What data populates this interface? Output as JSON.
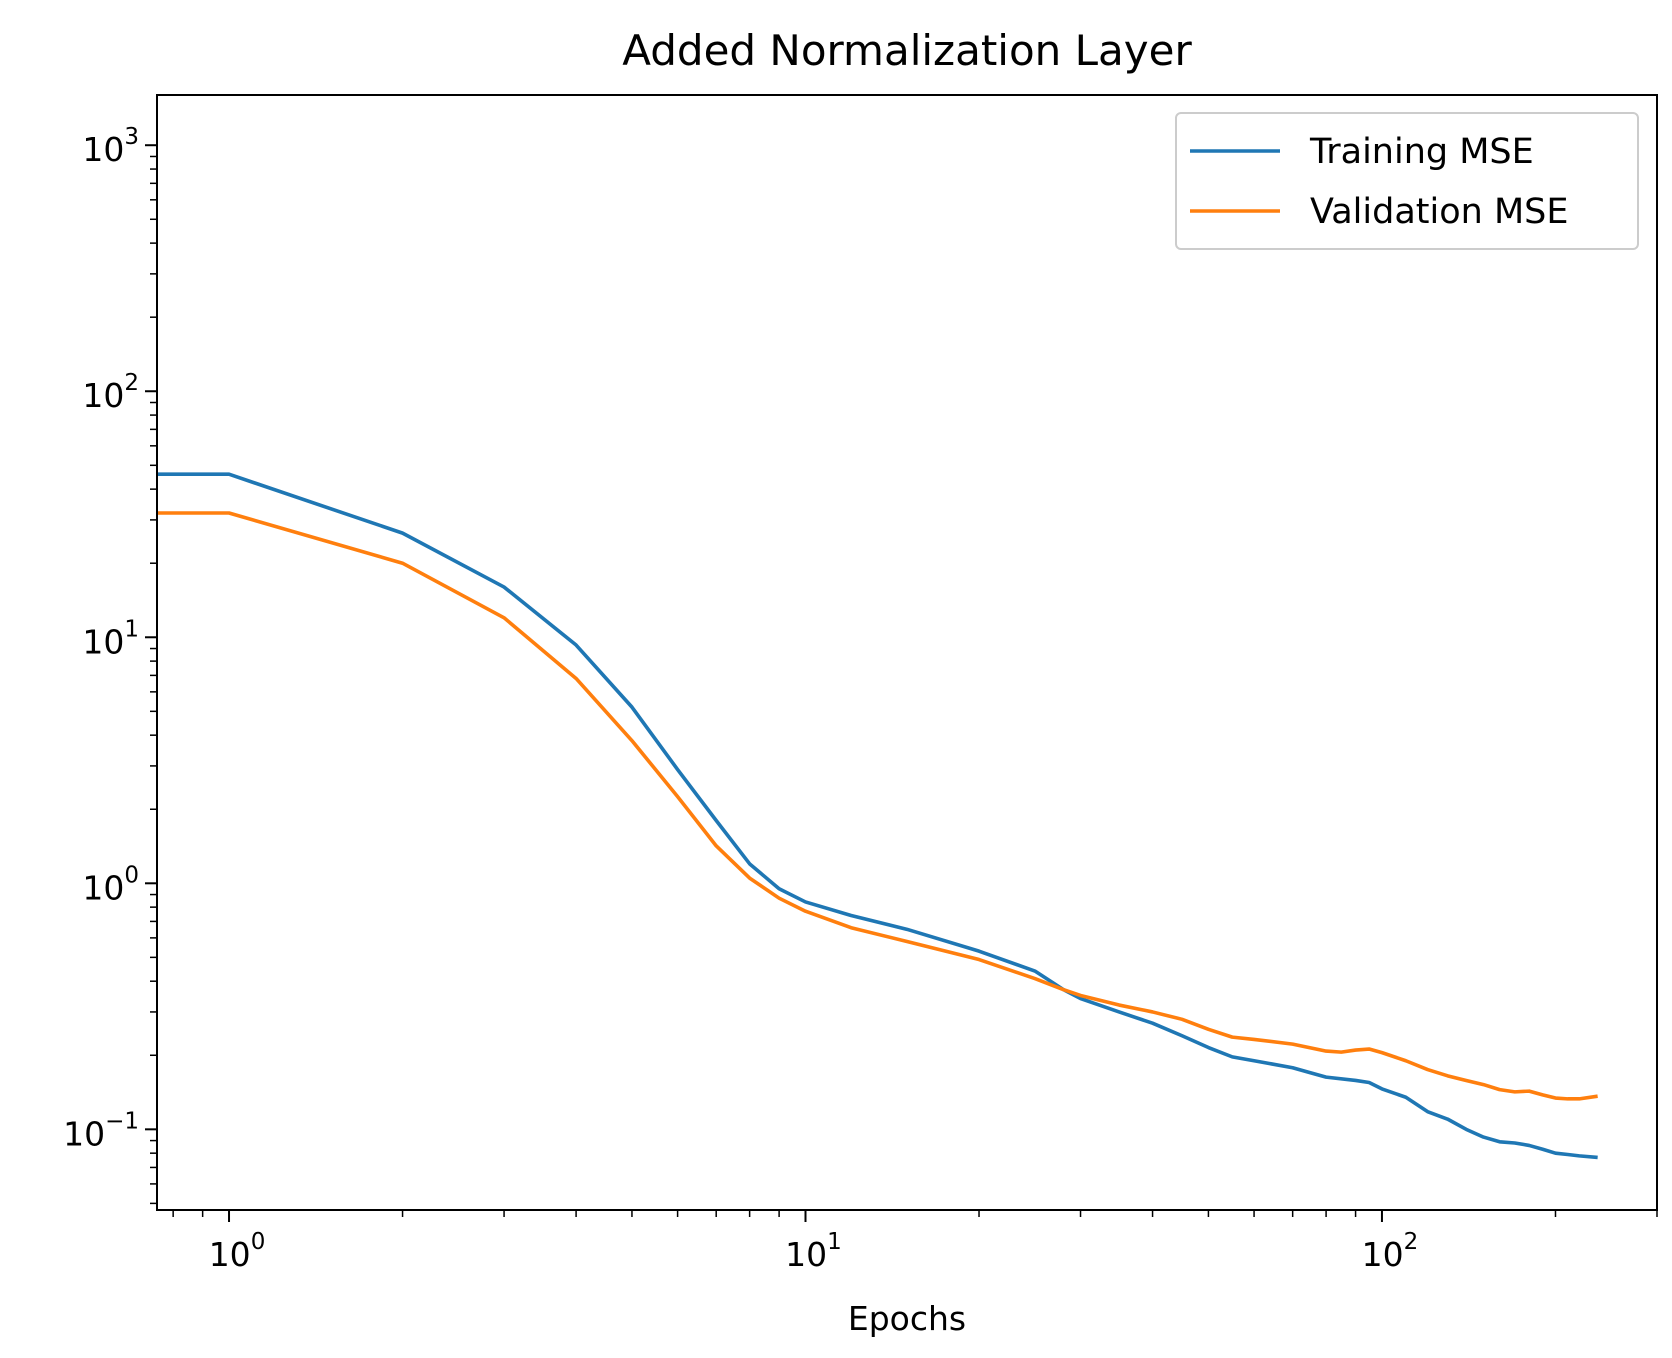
{
  "chart_data": {
    "type": "line",
    "title": "Added Normalization Layer",
    "xlabel": "Epochs",
    "ylabel": "",
    "xscale": "log",
    "yscale": "log",
    "xlim": [
      0.75,
      300
    ],
    "ylim": [
      0.047,
      1600
    ],
    "x_major_ticks": [
      {
        "value": 1,
        "base": "10",
        "exp": "0"
      },
      {
        "value": 10,
        "base": "10",
        "exp": "1"
      },
      {
        "value": 100,
        "base": "10",
        "exp": "2"
      }
    ],
    "y_major_ticks": [
      {
        "value": 0.1,
        "base": "10",
        "exp": "−1"
      },
      {
        "value": 1,
        "base": "10",
        "exp": "0"
      },
      {
        "value": 10,
        "base": "10",
        "exp": "1"
      },
      {
        "value": 100,
        "base": "10",
        "exp": "2"
      },
      {
        "value": 1000,
        "base": "10",
        "exp": "3"
      }
    ],
    "grid": false,
    "legend": {
      "position": "top-right"
    },
    "series": [
      {
        "name": "Training MSE",
        "color": "#1f77b4",
        "points": [
          [
            0.7,
            46
          ],
          [
            1,
            46
          ],
          [
            2,
            26.5
          ],
          [
            3,
            16
          ],
          [
            4,
            9.3
          ],
          [
            5,
            5.2
          ],
          [
            6,
            2.9
          ],
          [
            7,
            1.8
          ],
          [
            8,
            1.2
          ],
          [
            9,
            0.95
          ],
          [
            10,
            0.84
          ],
          [
            12,
            0.74
          ],
          [
            15,
            0.65
          ],
          [
            20,
            0.53
          ],
          [
            25,
            0.44
          ],
          [
            28,
            0.37
          ],
          [
            30,
            0.34
          ],
          [
            35,
            0.3
          ],
          [
            40,
            0.27
          ],
          [
            45,
            0.24
          ],
          [
            50,
            0.215
          ],
          [
            55,
            0.197
          ],
          [
            60,
            0.19
          ],
          [
            70,
            0.178
          ],
          [
            75,
            0.17
          ],
          [
            80,
            0.163
          ],
          [
            90,
            0.158
          ],
          [
            95,
            0.155
          ],
          [
            100,
            0.146
          ],
          [
            110,
            0.135
          ],
          [
            120,
            0.118
          ],
          [
            130,
            0.11
          ],
          [
            140,
            0.1
          ],
          [
            150,
            0.093
          ],
          [
            160,
            0.089
          ],
          [
            170,
            0.088
          ],
          [
            180,
            0.086
          ],
          [
            190,
            0.083
          ],
          [
            200,
            0.08
          ],
          [
            210,
            0.079
          ],
          [
            220,
            0.078
          ],
          [
            235,
            0.077
          ]
        ]
      },
      {
        "name": "Validation MSE",
        "color": "#ff7f0e",
        "points": [
          [
            0.7,
            32
          ],
          [
            1,
            32
          ],
          [
            2,
            20
          ],
          [
            3,
            12
          ],
          [
            4,
            6.8
          ],
          [
            5,
            3.8
          ],
          [
            6,
            2.25
          ],
          [
            7,
            1.42
          ],
          [
            8,
            1.05
          ],
          [
            9,
            0.87
          ],
          [
            10,
            0.77
          ],
          [
            12,
            0.66
          ],
          [
            15,
            0.58
          ],
          [
            20,
            0.49
          ],
          [
            25,
            0.41
          ],
          [
            28,
            0.37
          ],
          [
            30,
            0.35
          ],
          [
            35,
            0.32
          ],
          [
            40,
            0.3
          ],
          [
            45,
            0.28
          ],
          [
            50,
            0.255
          ],
          [
            55,
            0.237
          ],
          [
            60,
            0.232
          ],
          [
            70,
            0.222
          ],
          [
            80,
            0.208
          ],
          [
            85,
            0.206
          ],
          [
            90,
            0.21
          ],
          [
            95,
            0.212
          ],
          [
            100,
            0.205
          ],
          [
            110,
            0.19
          ],
          [
            120,
            0.175
          ],
          [
            130,
            0.165
          ],
          [
            140,
            0.158
          ],
          [
            150,
            0.152
          ],
          [
            160,
            0.145
          ],
          [
            170,
            0.142
          ],
          [
            180,
            0.143
          ],
          [
            190,
            0.138
          ],
          [
            200,
            0.134
          ],
          [
            210,
            0.133
          ],
          [
            220,
            0.133
          ],
          [
            235,
            0.136
          ]
        ]
      }
    ]
  }
}
